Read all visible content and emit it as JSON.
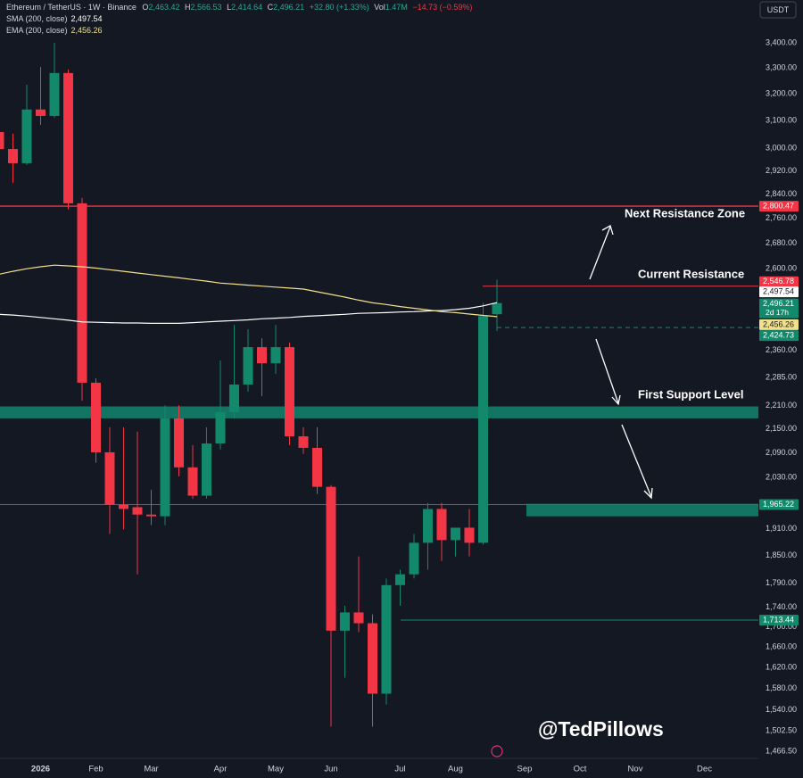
{
  "chart_data": {
    "type": "candlestick",
    "header": {
      "symbol": "Ethereum / TetherUS · 1W · Binance",
      "stats": [
        {
          "key": "O",
          "value": "2,463.42"
        },
        {
          "key": "H",
          "value": "2,566.53"
        },
        {
          "key": "L",
          "value": "2,414.64"
        },
        {
          "key": "C",
          "value": "2,496.21"
        }
      ],
      "change": "+32.80 (+1.33%)",
      "volume_key": "Vol",
      "volume": "1.47M",
      "volume_change": "−14.73 (−0.59%)",
      "currency": "USDT"
    },
    "categories": [
      null,
      null,
      null,
      "2026",
      null,
      null,
      null,
      "Feb",
      null,
      null,
      null,
      "Mar",
      null,
      null,
      null,
      null,
      "Apr",
      null,
      null,
      null,
      "May",
      null,
      null,
      null,
      "Jun",
      null,
      null,
      null,
      null,
      "Jul",
      null,
      null,
      null,
      "Aug",
      null,
      null,
      null,
      null,
      "Sep",
      null,
      null,
      null,
      "Oct",
      null,
      null,
      null,
      "Nov",
      null,
      null,
      null,
      null,
      "Dec",
      null,
      null,
      null
    ],
    "open": [
      3058,
      2997,
      2947,
      3141,
      3117,
      3280,
      2810,
      2271,
      2091,
      1965,
      1959,
      1942,
      1938,
      2177,
      2054,
      1986,
      2113,
      2193,
      2266,
      2369,
      2324,
      2369,
      2131,
      2102,
      2007,
      1692,
      1729,
      1707,
      1570,
      1786,
      1809,
      1878,
      1955,
      1884,
      1912,
      1878,
      2463.42,
      null,
      null,
      null,
      null,
      null,
      null,
      null,
      null,
      null,
      null,
      null,
      null,
      null,
      null,
      null,
      null,
      null,
      null
    ],
    "high": [
      3101,
      3052,
      3235,
      3304,
      3400,
      3294,
      2828,
      2283,
      2154,
      2154,
      2143,
      2000,
      2211,
      2211,
      2109,
      2154,
      2332,
      2432,
      2420,
      2394,
      2432,
      2382,
      2154,
      2154,
      2011,
      1743,
      1848,
      1725,
      1800,
      1819,
      1898,
      1969,
      1969,
      1912,
      1955,
      2497,
      2566.53,
      null,
      null,
      null,
      null,
      null,
      null,
      null,
      null,
      null,
      null,
      null,
      null,
      null,
      null,
      null,
      null,
      null,
      null
    ],
    "low": [
      2910,
      2879,
      2941,
      3084,
      3110,
      2790,
      2223,
      2065,
      1898,
      1908,
      1809,
      1918,
      1918,
      2032,
      1979,
      1979,
      2098,
      2177,
      2247,
      2235,
      2295,
      2109,
      2087,
      1990,
      1510,
      1600,
      1689,
      1510,
      1550,
      1743,
      1800,
      1819,
      1838,
      1848,
      1848,
      1874,
      2414.64,
      null,
      null,
      null,
      null,
      null,
      null,
      null,
      null,
      null,
      null,
      null,
      null,
      null,
      null,
      null,
      null,
      null,
      null
    ],
    "close": [
      2997,
      2947,
      3141,
      3117,
      3280,
      2810,
      2271,
      2091,
      1965,
      1955,
      1942,
      1938,
      2177,
      2054,
      1986,
      2113,
      2193,
      2266,
      2369,
      2324,
      2369,
      2131,
      2102,
      2007,
      1692,
      1729,
      1707,
      1570,
      1786,
      1809,
      1878,
      1955,
      1884,
      1912,
      1878,
      2458,
      2496.21,
      null,
      null,
      null,
      null,
      null,
      null,
      null,
      null,
      null,
      null,
      null,
      null,
      null,
      null,
      null,
      null,
      null,
      null
    ],
    "up_color": "#13896b",
    "down_color": "#f23645",
    "last_price_label": "2,496.21",
    "countdown": "2d 17h",
    "series": [
      {
        "name": "SMA (200, close)",
        "color": "#ffffff",
        "last_label": "2,497.54",
        "values": [
          2463,
          2461,
          2458,
          2454,
          2450,
          2446,
          2441,
          2440,
          2439,
          2438,
          2438,
          2437,
          2437,
          2437,
          2439,
          2441,
          2443,
          2445,
          2447,
          2450,
          2452,
          2454,
          2457,
          2459,
          2461,
          2463,
          2466,
          2467,
          2468,
          2470,
          2471,
          2473,
          2474,
          2477,
          2481,
          2488,
          2497.54,
          null,
          null,
          null,
          null,
          null,
          null,
          null,
          null,
          null,
          null,
          null,
          null,
          null,
          null,
          null,
          null,
          null,
          null
        ]
      },
      {
        "name": "EMA (200, close)",
        "color": "#f3e08a",
        "last_label": "2,456.26",
        "values": [
          2583,
          2592,
          2600,
          2606,
          2611,
          2609,
          2606,
          2602,
          2597,
          2592,
          2587,
          2582,
          2577,
          2572,
          2567,
          2562,
          2556,
          2553,
          2550,
          2547,
          2544,
          2541,
          2538,
          2530,
          2522,
          2514,
          2505,
          2497,
          2492,
          2486,
          2481,
          2476,
          2471,
          2468,
          2464,
          2460,
          2456.26,
          null,
          null,
          null,
          null,
          null,
          null,
          null,
          null,
          null,
          null,
          null,
          null,
          null,
          null,
          null,
          null,
          null,
          null
        ]
      }
    ],
    "hlines": [
      {
        "value": 2800.47,
        "label": "2,800.47",
        "color": "#f23645"
      },
      {
        "value": 2546.78,
        "label": "2,546.78",
        "color": "#f23645"
      },
      {
        "value": 2424.73,
        "label": "2,424.73",
        "color": "#13896b"
      },
      {
        "value": 1965.22,
        "label": "1,965.22",
        "color": "#13896b"
      },
      {
        "value": 1713.44,
        "label": "1,713.44",
        "color": "#13896b"
      }
    ],
    "zones": [
      {
        "from": 2177,
        "to": 2208,
        "color": "#12806a"
      },
      {
        "from": 1938,
        "to": 1967,
        "color": "#12806a"
      }
    ],
    "annotations": [
      "Next Resistance Zone",
      "Current Resistance",
      "First Support Level"
    ],
    "watermark": "@TedPillows",
    "log_scale": true,
    "ylim": [
      1454,
      3577
    ],
    "yticks": [
      {
        "value": 3400,
        "label": "3,400.00"
      },
      {
        "value": 3300,
        "label": "3,300.00"
      },
      {
        "value": 3200,
        "label": "3,200.00"
      },
      {
        "value": 3100,
        "label": "3,100.00"
      },
      {
        "value": 3000,
        "label": "3,000.00"
      },
      {
        "value": 2920,
        "label": "2,920.00"
      },
      {
        "value": 2840,
        "label": "2,840.00"
      },
      {
        "value": 2760,
        "label": "2,760.00"
      },
      {
        "value": 2680,
        "label": "2,680.00"
      },
      {
        "value": 2600,
        "label": "2,600.00"
      },
      {
        "value": 2360,
        "label": "2,360.00"
      },
      {
        "value": 2285,
        "label": "2,285.00"
      },
      {
        "value": 2210,
        "label": "2,210.00"
      },
      {
        "value": 2150,
        "label": "2,150.00"
      },
      {
        "value": 2090,
        "label": "2,090.00"
      },
      {
        "value": 2030,
        "label": "2,030.00"
      },
      {
        "value": 1910,
        "label": "1,910.00"
      },
      {
        "value": 1850,
        "label": "1,850.00"
      },
      {
        "value": 1790,
        "label": "1,790.00"
      },
      {
        "value": 1740,
        "label": "1,740.00"
      },
      {
        "value": 1700,
        "label": "1,700.00"
      },
      {
        "value": 1660,
        "label": "1,660.00"
      },
      {
        "value": 1620,
        "label": "1,620.00"
      },
      {
        "value": 1580,
        "label": "1,580.00"
      },
      {
        "value": 1540,
        "label": "1,540.00"
      },
      {
        "value": 1502.5,
        "label": "1,502.50"
      },
      {
        "value": 1466.5,
        "label": "1,466.50"
      }
    ],
    "grid": false
  }
}
